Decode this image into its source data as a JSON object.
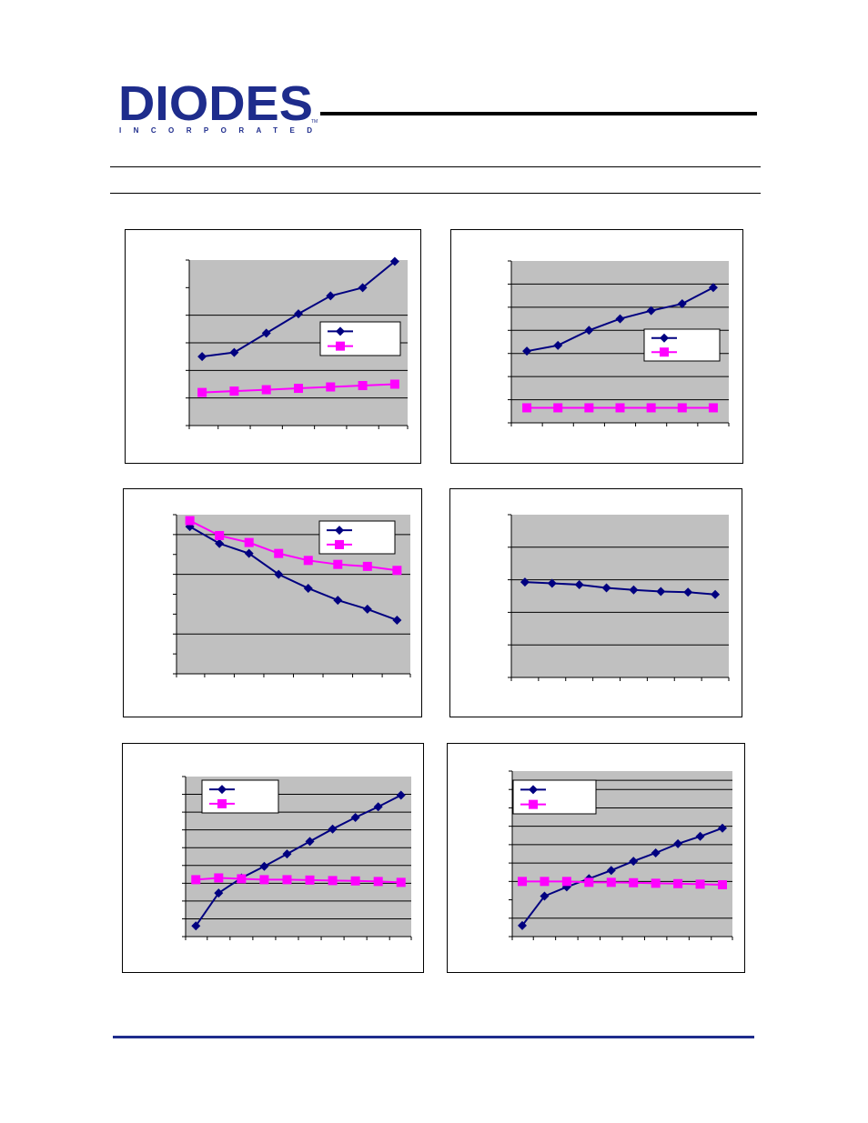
{
  "header": {
    "logo_text": "DIODES",
    "logo_subtext": "INCORPORATED",
    "logo_mark": "TM"
  },
  "colors": {
    "series_1": "#000080",
    "series_2": "#ff00ff",
    "plot_background": "#c0c0c0",
    "logo_blue": "#1e2c8c",
    "footer_rule": "#1e2c8c"
  },
  "chart_data": [
    {
      "type": "line",
      "title": "",
      "xlabel": "",
      "ylabel": "",
      "grid": true,
      "legend": "right",
      "x": [
        1,
        2,
        3,
        4,
        5,
        6,
        7
      ],
      "xlim": [
        0.6,
        7.4
      ],
      "ylim": [
        0,
        6
      ],
      "yticks": [
        0,
        1,
        2,
        3,
        4,
        5,
        6
      ],
      "ygrid": [
        1,
        2,
        3,
        4
      ],
      "series": [
        {
          "values": [
            2.5,
            2.65,
            3.35,
            4.05,
            4.7,
            5.0,
            5.95
          ]
        },
        {
          "values": [
            1.2,
            1.25,
            1.3,
            1.35,
            1.4,
            1.45,
            1.5
          ]
        }
      ]
    },
    {
      "type": "line",
      "title": "",
      "xlabel": "",
      "ylabel": "",
      "grid": true,
      "legend": "right",
      "x": [
        1,
        2,
        3,
        4,
        5,
        6,
        7
      ],
      "xlim": [
        0.5,
        7.5
      ],
      "ylim": [
        0,
        7
      ],
      "yticks": [
        0,
        1,
        2,
        3,
        4,
        5,
        6,
        7
      ],
      "ygrid": [
        1,
        2,
        3,
        4,
        5,
        6
      ],
      "series": [
        {
          "values": [
            3.1,
            3.35,
            4.0,
            4.5,
            4.85,
            5.15,
            5.85
          ]
        },
        {
          "values": [
            0.65,
            0.65,
            0.65,
            0.65,
            0.65,
            0.65,
            0.65
          ]
        }
      ]
    },
    {
      "type": "line",
      "title": "",
      "xlabel": "",
      "ylabel": "",
      "grid": true,
      "legend": "top-right",
      "x": [
        1,
        2,
        3,
        4,
        5,
        6,
        7,
        8
      ],
      "xlim": [
        0.55,
        8.45
      ],
      "ylim": [
        0,
        8
      ],
      "yticks": [
        0,
        1,
        2,
        3,
        4,
        5,
        6,
        7,
        8
      ],
      "ygrid": [
        2,
        5,
        7
      ],
      "series": [
        {
          "values": [
            7.4,
            6.55,
            6.05,
            5.0,
            4.3,
            3.7,
            3.25,
            2.7
          ]
        },
        {
          "values": [
            7.7,
            6.95,
            6.6,
            6.05,
            5.7,
            5.5,
            5.4,
            5.2
          ]
        }
      ]
    },
    {
      "type": "line",
      "title": "",
      "xlabel": "",
      "ylabel": "",
      "grid": true,
      "legend": "none",
      "x": [
        1,
        2,
        3,
        4,
        5,
        6,
        7,
        8
      ],
      "xlim": [
        0.5,
        8.5
      ],
      "ylim": [
        0,
        5
      ],
      "yticks": [
        0,
        1,
        2,
        3,
        4,
        5
      ],
      "ygrid": [
        1,
        2,
        3,
        4
      ],
      "series": [
        {
          "values": [
            2.93,
            2.89,
            2.85,
            2.75,
            2.69,
            2.64,
            2.62,
            2.55
          ]
        }
      ]
    },
    {
      "type": "line",
      "title": "",
      "xlabel": "",
      "ylabel": "",
      "grid": true,
      "legend": "top-left",
      "x": [
        1,
        2,
        3,
        4,
        5,
        6,
        7,
        8,
        9,
        10
      ],
      "xlim": [
        0.55,
        10.45
      ],
      "ylim": [
        0,
        9
      ],
      "yticks": [
        0,
        1,
        2,
        3,
        4,
        5,
        6,
        7,
        8,
        9
      ],
      "ygrid": [
        1,
        2,
        3,
        4,
        5,
        6,
        7,
        8
      ],
      "series": [
        {
          "values": [
            0.6,
            2.45,
            3.3,
            3.95,
            4.65,
            5.35,
            6.05,
            6.7,
            7.3,
            7.95
          ]
        },
        {
          "values": [
            3.2,
            3.3,
            3.25,
            3.2,
            3.2,
            3.18,
            3.15,
            3.13,
            3.1,
            3.05
          ]
        }
      ]
    },
    {
      "type": "line",
      "title": "",
      "xlabel": "",
      "ylabel": "",
      "grid": true,
      "legend": "top-left",
      "x": [
        1,
        2,
        3,
        4,
        5,
        6,
        7,
        8,
        9,
        10
      ],
      "xlim": [
        0.55,
        10.45
      ],
      "ylim": [
        0,
        9
      ],
      "yticks": [
        0,
        1,
        2,
        3,
        4,
        5,
        6,
        7,
        8,
        9
      ],
      "ygrid": [
        1,
        3,
        4,
        5,
        6,
        7,
        8,
        8.5
      ],
      "series": [
        {
          "values": [
            0.6,
            2.2,
            2.7,
            3.15,
            3.6,
            4.1,
            4.55,
            5.05,
            5.45,
            5.9
          ]
        },
        {
          "values": [
            3.0,
            3.0,
            3.0,
            2.95,
            2.95,
            2.93,
            2.9,
            2.88,
            2.85,
            2.82
          ]
        }
      ]
    }
  ]
}
